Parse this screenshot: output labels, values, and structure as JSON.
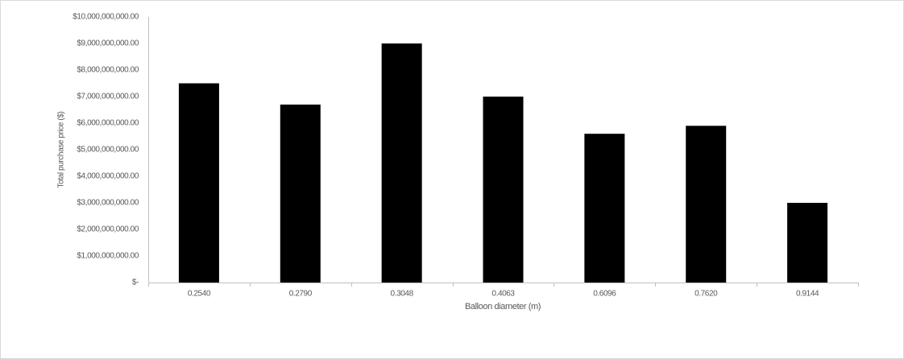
{
  "chart_data": {
    "type": "bar",
    "x_label": "Balloon diameter (m)",
    "y_label": "Total purchase price ($)",
    "categories": [
      "0.2540",
      "0.2790",
      "0.3048",
      "0.4063",
      "0.6096",
      "0.7620",
      "0.9144"
    ],
    "values": [
      7500000000,
      6700000000,
      9000000000,
      7000000000,
      5600000000,
      5900000000,
      3000000000
    ],
    "color": "#000000",
    "ylim": [
      0,
      10000000000
    ],
    "yticks": [
      {
        "value": 0,
        "label": "$-"
      },
      {
        "value": 1000000000,
        "label": "$1,000,000,000.00"
      },
      {
        "value": 2000000000,
        "label": "$2,000,000,000.00"
      },
      {
        "value": 3000000000,
        "label": "$3,000,000,000.00"
      },
      {
        "value": 4000000000,
        "label": "$4,000,000,000.00"
      },
      {
        "value": 5000000000,
        "label": "$5,000,000,000.00"
      },
      {
        "value": 6000000000,
        "label": "$6,000,000,000.00"
      },
      {
        "value": 7000000000,
        "label": "$7,000,000,000.00"
      },
      {
        "value": 8000000000,
        "label": "$8,000,000,000.00"
      },
      {
        "value": 9000000000,
        "label": "$9,000,000,000.00"
      },
      {
        "value": 10000000000,
        "label": "$10,000,000,000.00"
      }
    ],
    "grid": false
  }
}
